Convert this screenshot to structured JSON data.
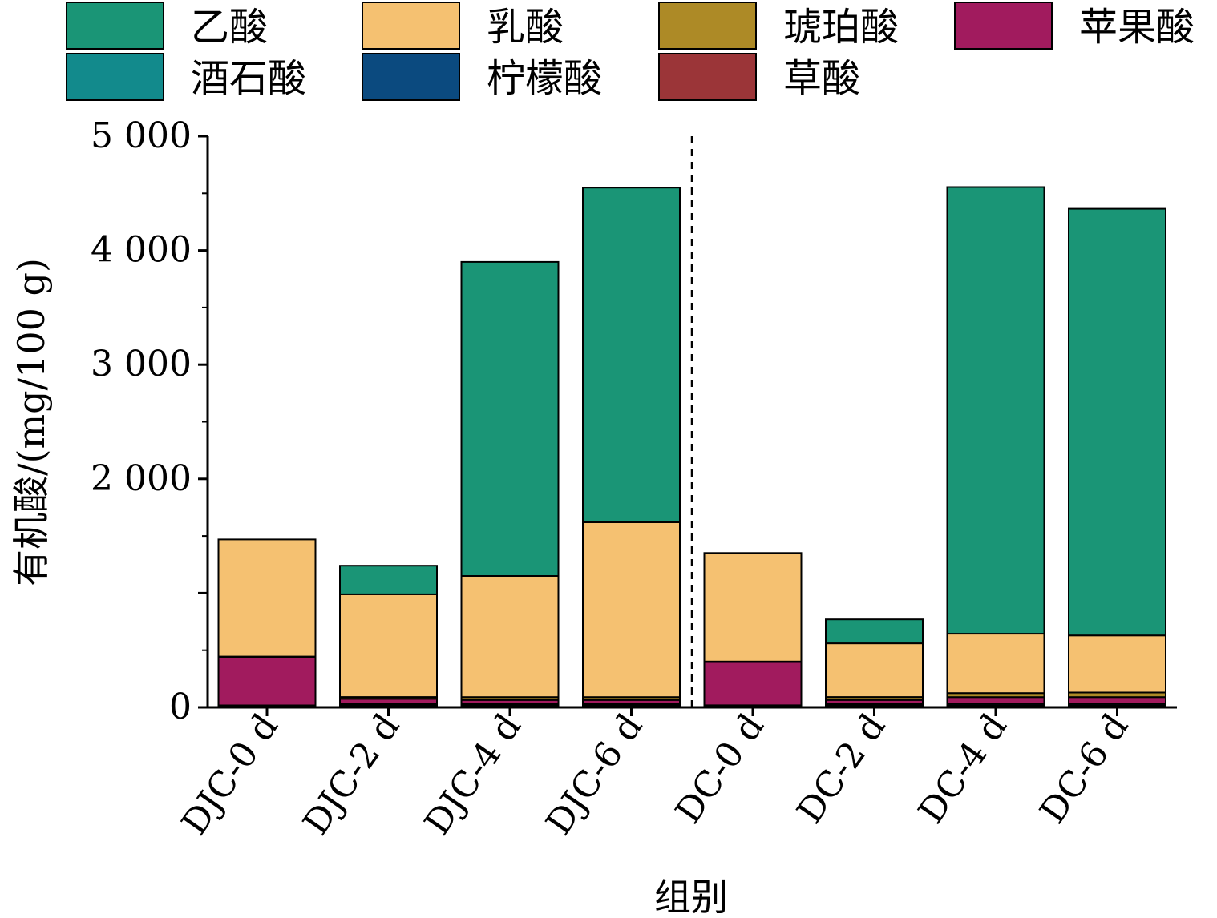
{
  "chart_data": {
    "type": "bar",
    "stacked": true,
    "xlabel": "组别",
    "ylabel": "有机酸/(mg/100 g)",
    "ylim": [
      0,
      5000
    ],
    "yticks": [
      {
        "value": 0,
        "label": "0"
      },
      {
        "value": 1000,
        "label": ""
      },
      {
        "value": 2000,
        "label": "2 000"
      },
      {
        "value": 3000,
        "label": "3 000"
      },
      {
        "value": 4000,
        "label": "4 000"
      },
      {
        "value": 5000,
        "label": "5 000"
      }
    ],
    "legend_position": "top",
    "divider_after_category": 3,
    "categories": [
      "DJC-0 d",
      "DJC-2 d",
      "DJC-4 d",
      "DJC-6 d",
      "DC-0 d",
      "DC-2 d",
      "DC-4 d",
      "DC-6 d"
    ],
    "series": [
      {
        "name": "草酸",
        "color": "#9b3538",
        "values": [
          5,
          15,
          15,
          15,
          5,
          15,
          15,
          15
        ]
      },
      {
        "name": "柠檬酸",
        "color": "#0b4a7f",
        "values": [
          8,
          10,
          10,
          10,
          8,
          10,
          15,
          15
        ]
      },
      {
        "name": "酒石酸",
        "color": "#128a8c",
        "values": [
          5,
          5,
          5,
          5,
          5,
          5,
          5,
          5
        ]
      },
      {
        "name": "苹果酸",
        "color": "#a11b5e",
        "values": [
          422,
          45,
          35,
          35,
          378,
          35,
          55,
          55
        ]
      },
      {
        "name": "琥珀酸",
        "color": "#ad8a26",
        "values": [
          5,
          15,
          25,
          25,
          5,
          25,
          35,
          40
        ]
      },
      {
        "name": "乳酸",
        "color": "#f5c171",
        "values": [
          1025,
          900,
          1060,
          1530,
          950,
          470,
          520,
          500
        ]
      },
      {
        "name": "乙酸",
        "color": "#1a9576",
        "values": [
          0,
          250,
          2750,
          2930,
          0,
          210,
          3910,
          3735
        ]
      }
    ]
  }
}
